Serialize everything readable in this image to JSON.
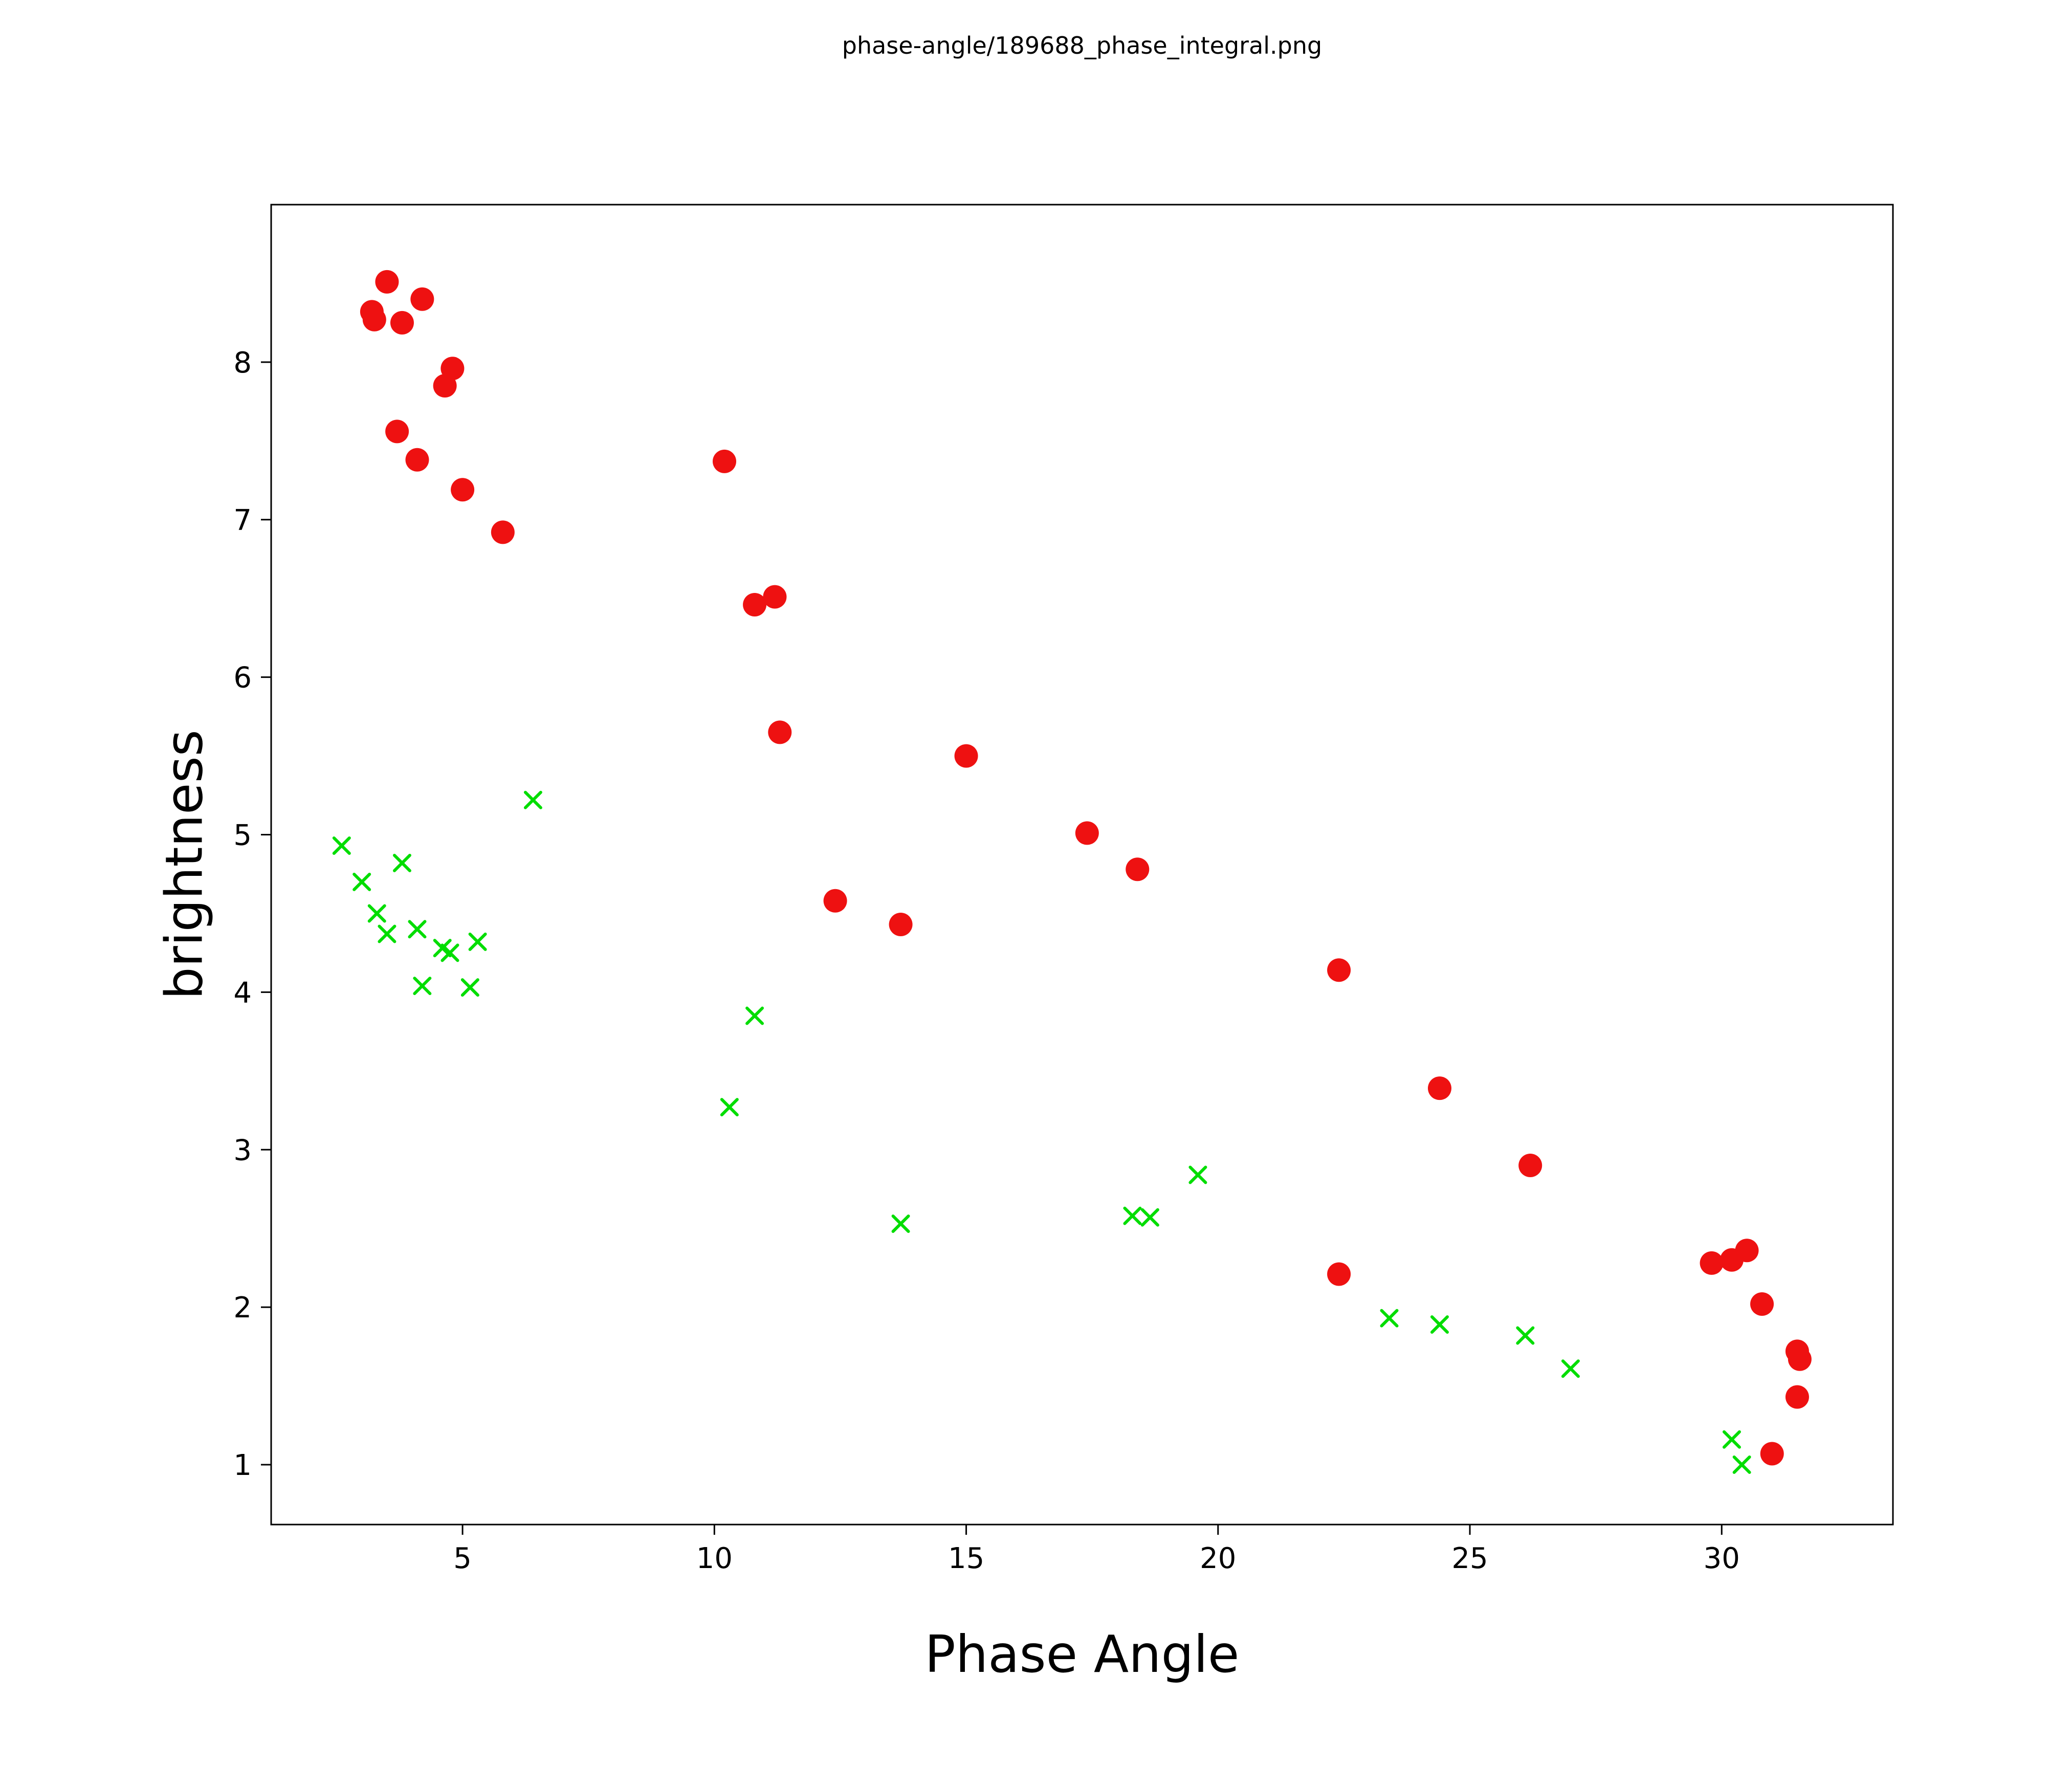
{
  "figure": {
    "title": "phase-angle/189688_phase_integral.png"
  },
  "chart_data": {
    "type": "scatter",
    "title": "phase-angle/189688_phase_integral.png",
    "xlabel": "Phase Angle",
    "ylabel": "brightness",
    "xlim": [
      1.2,
      33.4
    ],
    "ylim": [
      0.62,
      9.0
    ],
    "x_ticks": [
      5,
      10,
      15,
      20,
      25,
      30
    ],
    "y_ticks": [
      1,
      2,
      3,
      4,
      5,
      6,
      7,
      8
    ],
    "grid": false,
    "legend_position": "none",
    "series": [
      {
        "name": "red-circles",
        "marker": "circle",
        "color": "#ee1111",
        "marker_radius": 23,
        "points": [
          [
            3.2,
            8.32
          ],
          [
            3.25,
            8.27
          ],
          [
            3.5,
            8.51
          ],
          [
            3.8,
            8.25
          ],
          [
            4.2,
            8.4
          ],
          [
            4.65,
            7.85
          ],
          [
            4.8,
            7.96
          ],
          [
            3.7,
            7.56
          ],
          [
            4.1,
            7.38
          ],
          [
            5.0,
            7.19
          ],
          [
            5.8,
            6.92
          ],
          [
            10.2,
            7.37
          ],
          [
            10.8,
            6.46
          ],
          [
            11.2,
            6.51
          ],
          [
            11.3,
            5.65
          ],
          [
            15.0,
            5.5
          ],
          [
            17.4,
            5.01
          ],
          [
            18.4,
            4.78
          ],
          [
            12.4,
            4.58
          ],
          [
            13.7,
            4.43
          ],
          [
            22.4,
            4.14
          ],
          [
            24.4,
            3.39
          ],
          [
            26.2,
            2.9
          ],
          [
            22.4,
            2.21
          ],
          [
            29.8,
            2.28
          ],
          [
            30.2,
            2.3
          ],
          [
            30.5,
            2.36
          ],
          [
            30.8,
            2.02
          ],
          [
            31.5,
            1.72
          ],
          [
            31.55,
            1.67
          ],
          [
            31.5,
            1.43
          ],
          [
            31.0,
            1.07
          ]
        ]
      },
      {
        "name": "green-crosses",
        "marker": "x",
        "color": "#00dd00",
        "marker_half_size": 15,
        "points": [
          [
            2.6,
            4.93
          ],
          [
            3.0,
            4.7
          ],
          [
            3.3,
            4.5
          ],
          [
            3.5,
            4.37
          ],
          [
            3.8,
            4.82
          ],
          [
            4.1,
            4.4
          ],
          [
            4.2,
            4.04
          ],
          [
            4.6,
            4.28
          ],
          [
            4.75,
            4.25
          ],
          [
            5.15,
            4.03
          ],
          [
            5.3,
            4.32
          ],
          [
            6.4,
            5.22
          ],
          [
            10.3,
            3.27
          ],
          [
            10.8,
            3.85
          ],
          [
            13.7,
            2.53
          ],
          [
            18.3,
            2.58
          ],
          [
            18.65,
            2.57
          ],
          [
            19.6,
            2.84
          ],
          [
            23.4,
            1.93
          ],
          [
            24.4,
            1.89
          ],
          [
            26.1,
            1.82
          ],
          [
            27.0,
            1.61
          ],
          [
            30.2,
            1.16
          ],
          [
            30.4,
            1.0
          ]
        ]
      }
    ],
    "axis_color": "#000000",
    "background_color": "#ffffff"
  }
}
